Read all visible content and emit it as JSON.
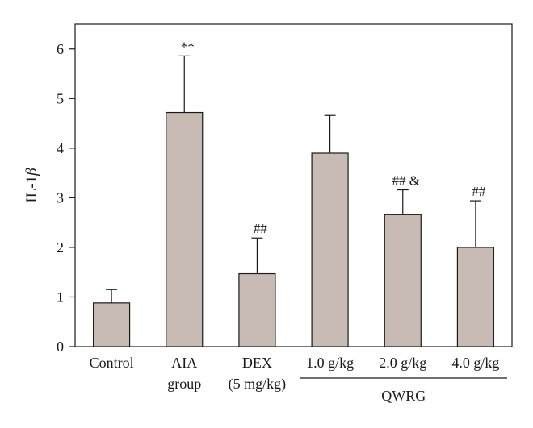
{
  "chart_data": {
    "type": "bar",
    "title": "",
    "xlabel": "",
    "ylabel": "IL-1β",
    "ylim": [
      0,
      6.5
    ],
    "yticks": [
      0,
      1,
      2,
      3,
      4,
      5,
      6
    ],
    "grid": false,
    "bar_color": "#c8bbb4",
    "categories": [
      [
        "Control"
      ],
      [
        "AIA",
        "group"
      ],
      [
        "DEX",
        "(5 mg/kg)"
      ],
      [
        "1.0 g/kg"
      ],
      [
        "2.0 g/kg"
      ],
      [
        "4.0 g/kg"
      ]
    ],
    "values": [
      0.88,
      4.72,
      1.47,
      3.9,
      2.66,
      2.0
    ],
    "error_upper": [
      1.15,
      5.86,
      2.19,
      4.66,
      3.16,
      2.94
    ],
    "annotations": [
      "",
      "**",
      "##",
      "",
      "## &",
      "##"
    ],
    "group_bracket": {
      "label": "QWRG",
      "from_index": 3,
      "to_index": 5
    }
  }
}
